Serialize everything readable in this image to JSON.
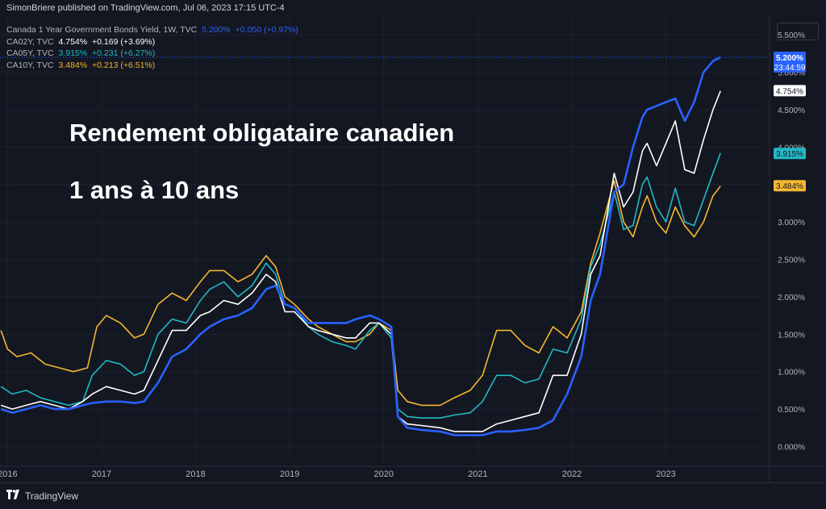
{
  "header": {
    "publisher_line": "SimonBriere published on TradingView.com, Jul 06, 2023 17:15 UTC-4"
  },
  "legend": {
    "main": {
      "name": "Canada 1 Year Government Bonds Yield, 1W, TVC",
      "value": "5.200%",
      "change": "+0.050 (+0.97%)",
      "color": "#2962ff"
    },
    "overlays": [
      {
        "symbol": "CA02Y, TVC",
        "value": "4.754%",
        "change": "+0.169 (+3.69%)",
        "color": "#ffffff"
      },
      {
        "symbol": "CA05Y, TVC",
        "value": "3.915%",
        "change": "+0.231 (+6.27%)",
        "color": "#22b8c4"
      },
      {
        "symbol": "CA10Y, TVC",
        "value": "3.484%",
        "change": "+0.213 (+6.51%)",
        "color": "#f5b731"
      }
    ]
  },
  "overlay_text": {
    "title": "Rendement obligataire canadien",
    "subtitle": "1 ans à 10 ans"
  },
  "footer": {
    "brand": "TradingView",
    "brand_icon": "tradingview-logo-icon"
  },
  "price_badges": [
    {
      "label": "5.200%",
      "sublabel": "23:44:59",
      "value": 5.2,
      "bg": "#2962ff",
      "fg": "#ffffff"
    },
    {
      "label": "4.754%",
      "value": 4.754,
      "bg": "#ffffff",
      "fg": "#131722"
    },
    {
      "label": "3.915%",
      "value": 3.915,
      "bg": "#22b8c4",
      "fg": "#131722"
    },
    {
      "label": "3.484%",
      "value": 3.484,
      "bg": "#f5b731",
      "fg": "#131722"
    }
  ],
  "chart_data": {
    "type": "line",
    "ylim": [
      -0.2,
      5.75
    ],
    "xlim": [
      2015.92,
      2024.05
    ],
    "y_ticks": [
      0,
      0.5,
      1,
      1.5,
      2,
      2.5,
      3,
      3.5,
      4,
      4.5,
      5,
      5.5
    ],
    "y_tick_labels": [
      "0.000%",
      "0.500%",
      "1.000%",
      "1.500%",
      "2.000%",
      "2.500%",
      "3.000%",
      "3.500%",
      "4.000%",
      "4.500%",
      "5.000%",
      "5.500%"
    ],
    "x_ticks": [
      2016,
      2017,
      2018,
      2019,
      2020,
      2021,
      2022,
      2023
    ],
    "x_tick_labels": [
      "2016",
      "2017",
      "2018",
      "2019",
      "2020",
      "2021",
      "2022",
      "2023"
    ],
    "grid": true,
    "series": [
      {
        "name": "CA10Y",
        "color": "#f5b731",
        "points": [
          [
            2015.93,
            1.55
          ],
          [
            2016.0,
            1.3
          ],
          [
            2016.1,
            1.2
          ],
          [
            2016.25,
            1.25
          ],
          [
            2016.4,
            1.1
          ],
          [
            2016.55,
            1.05
          ],
          [
            2016.7,
            1.0
          ],
          [
            2016.85,
            1.05
          ],
          [
            2016.95,
            1.6
          ],
          [
            2017.05,
            1.75
          ],
          [
            2017.2,
            1.65
          ],
          [
            2017.35,
            1.45
          ],
          [
            2017.45,
            1.5
          ],
          [
            2017.6,
            1.9
          ],
          [
            2017.75,
            2.05
          ],
          [
            2017.9,
            1.95
          ],
          [
            2018.05,
            2.2
          ],
          [
            2018.15,
            2.35
          ],
          [
            2018.3,
            2.35
          ],
          [
            2018.45,
            2.2
          ],
          [
            2018.6,
            2.3
          ],
          [
            2018.75,
            2.55
          ],
          [
            2018.85,
            2.4
          ],
          [
            2018.95,
            2.0
          ],
          [
            2019.05,
            1.9
          ],
          [
            2019.2,
            1.7
          ],
          [
            2019.3,
            1.6
          ],
          [
            2019.45,
            1.5
          ],
          [
            2019.6,
            1.4
          ],
          [
            2019.7,
            1.4
          ],
          [
            2019.85,
            1.5
          ],
          [
            2019.95,
            1.65
          ],
          [
            2020.08,
            1.55
          ],
          [
            2020.15,
            0.75
          ],
          [
            2020.25,
            0.6
          ],
          [
            2020.4,
            0.55
          ],
          [
            2020.6,
            0.55
          ],
          [
            2020.75,
            0.65
          ],
          [
            2020.92,
            0.75
          ],
          [
            2021.05,
            0.95
          ],
          [
            2021.2,
            1.55
          ],
          [
            2021.35,
            1.55
          ],
          [
            2021.5,
            1.35
          ],
          [
            2021.65,
            1.25
          ],
          [
            2021.8,
            1.6
          ],
          [
            2021.95,
            1.45
          ],
          [
            2022.1,
            1.8
          ],
          [
            2022.2,
            2.45
          ],
          [
            2022.3,
            2.85
          ],
          [
            2022.45,
            3.55
          ],
          [
            2022.55,
            3.0
          ],
          [
            2022.65,
            2.8
          ],
          [
            2022.75,
            3.2
          ],
          [
            2022.8,
            3.35
          ],
          [
            2022.9,
            3.0
          ],
          [
            2023.0,
            2.85
          ],
          [
            2023.1,
            3.2
          ],
          [
            2023.2,
            2.95
          ],
          [
            2023.3,
            2.8
          ],
          [
            2023.4,
            3.0
          ],
          [
            2023.5,
            3.35
          ],
          [
            2023.58,
            3.48
          ]
        ]
      },
      {
        "name": "CA05Y",
        "color": "#22b8c4",
        "points": [
          [
            2015.93,
            0.8
          ],
          [
            2016.05,
            0.7
          ],
          [
            2016.2,
            0.75
          ],
          [
            2016.35,
            0.65
          ],
          [
            2016.5,
            0.6
          ],
          [
            2016.65,
            0.55
          ],
          [
            2016.8,
            0.6
          ],
          [
            2016.9,
            0.95
          ],
          [
            2017.05,
            1.15
          ],
          [
            2017.2,
            1.1
          ],
          [
            2017.35,
            0.95
          ],
          [
            2017.45,
            1.0
          ],
          [
            2017.6,
            1.5
          ],
          [
            2017.75,
            1.7
          ],
          [
            2017.9,
            1.65
          ],
          [
            2018.05,
            1.95
          ],
          [
            2018.15,
            2.1
          ],
          [
            2018.3,
            2.2
          ],
          [
            2018.45,
            2.0
          ],
          [
            2018.6,
            2.15
          ],
          [
            2018.75,
            2.45
          ],
          [
            2018.85,
            2.3
          ],
          [
            2018.95,
            1.9
          ],
          [
            2019.05,
            1.85
          ],
          [
            2019.2,
            1.6
          ],
          [
            2019.3,
            1.5
          ],
          [
            2019.45,
            1.4
          ],
          [
            2019.6,
            1.35
          ],
          [
            2019.7,
            1.3
          ],
          [
            2019.85,
            1.55
          ],
          [
            2019.95,
            1.65
          ],
          [
            2020.08,
            1.45
          ],
          [
            2020.15,
            0.5
          ],
          [
            2020.25,
            0.4
          ],
          [
            2020.4,
            0.38
          ],
          [
            2020.6,
            0.38
          ],
          [
            2020.75,
            0.42
          ],
          [
            2020.92,
            0.45
          ],
          [
            2021.05,
            0.6
          ],
          [
            2021.2,
            0.95
          ],
          [
            2021.35,
            0.95
          ],
          [
            2021.5,
            0.85
          ],
          [
            2021.65,
            0.9
          ],
          [
            2021.8,
            1.3
          ],
          [
            2021.95,
            1.25
          ],
          [
            2022.1,
            1.7
          ],
          [
            2022.2,
            2.4
          ],
          [
            2022.3,
            2.7
          ],
          [
            2022.45,
            3.4
          ],
          [
            2022.55,
            2.9
          ],
          [
            2022.65,
            2.95
          ],
          [
            2022.75,
            3.5
          ],
          [
            2022.8,
            3.6
          ],
          [
            2022.9,
            3.2
          ],
          [
            2023.0,
            3.0
          ],
          [
            2023.1,
            3.45
          ],
          [
            2023.2,
            3.0
          ],
          [
            2023.3,
            2.95
          ],
          [
            2023.4,
            3.3
          ],
          [
            2023.5,
            3.65
          ],
          [
            2023.58,
            3.92
          ]
        ]
      },
      {
        "name": "CA02Y",
        "color": "#ffffff",
        "points": [
          [
            2015.93,
            0.55
          ],
          [
            2016.05,
            0.5
          ],
          [
            2016.2,
            0.55
          ],
          [
            2016.35,
            0.6
          ],
          [
            2016.5,
            0.55
          ],
          [
            2016.65,
            0.5
          ],
          [
            2016.8,
            0.6
          ],
          [
            2016.9,
            0.7
          ],
          [
            2017.05,
            0.8
          ],
          [
            2017.2,
            0.75
          ],
          [
            2017.35,
            0.7
          ],
          [
            2017.45,
            0.75
          ],
          [
            2017.6,
            1.15
          ],
          [
            2017.75,
            1.55
          ],
          [
            2017.9,
            1.55
          ],
          [
            2018.05,
            1.75
          ],
          [
            2018.15,
            1.8
          ],
          [
            2018.3,
            1.95
          ],
          [
            2018.45,
            1.9
          ],
          [
            2018.6,
            2.05
          ],
          [
            2018.75,
            2.3
          ],
          [
            2018.85,
            2.2
          ],
          [
            2018.95,
            1.8
          ],
          [
            2019.05,
            1.8
          ],
          [
            2019.2,
            1.6
          ],
          [
            2019.3,
            1.55
          ],
          [
            2019.45,
            1.5
          ],
          [
            2019.6,
            1.45
          ],
          [
            2019.7,
            1.45
          ],
          [
            2019.85,
            1.65
          ],
          [
            2019.95,
            1.65
          ],
          [
            2020.08,
            1.5
          ],
          [
            2020.15,
            0.4
          ],
          [
            2020.25,
            0.3
          ],
          [
            2020.4,
            0.28
          ],
          [
            2020.6,
            0.25
          ],
          [
            2020.75,
            0.2
          ],
          [
            2020.92,
            0.2
          ],
          [
            2021.05,
            0.2
          ],
          [
            2021.2,
            0.3
          ],
          [
            2021.35,
            0.35
          ],
          [
            2021.5,
            0.4
          ],
          [
            2021.65,
            0.45
          ],
          [
            2021.8,
            0.95
          ],
          [
            2021.95,
            0.95
          ],
          [
            2022.1,
            1.5
          ],
          [
            2022.2,
            2.3
          ],
          [
            2022.3,
            2.55
          ],
          [
            2022.45,
            3.65
          ],
          [
            2022.55,
            3.2
          ],
          [
            2022.65,
            3.4
          ],
          [
            2022.75,
            3.95
          ],
          [
            2022.8,
            4.05
          ],
          [
            2022.9,
            3.75
          ],
          [
            2023.0,
            4.05
          ],
          [
            2023.1,
            4.35
          ],
          [
            2023.2,
            3.7
          ],
          [
            2023.3,
            3.65
          ],
          [
            2023.4,
            4.1
          ],
          [
            2023.5,
            4.5
          ],
          [
            2023.58,
            4.75
          ]
        ]
      },
      {
        "name": "CA01Y",
        "color": "#2962ff",
        "points": [
          [
            2015.93,
            0.5
          ],
          [
            2016.05,
            0.45
          ],
          [
            2016.2,
            0.5
          ],
          [
            2016.35,
            0.55
          ],
          [
            2016.5,
            0.5
          ],
          [
            2016.65,
            0.5
          ],
          [
            2016.8,
            0.55
          ],
          [
            2016.9,
            0.58
          ],
          [
            2017.05,
            0.6
          ],
          [
            2017.2,
            0.6
          ],
          [
            2017.35,
            0.58
          ],
          [
            2017.45,
            0.6
          ],
          [
            2017.6,
            0.85
          ],
          [
            2017.75,
            1.2
          ],
          [
            2017.9,
            1.3
          ],
          [
            2018.05,
            1.5
          ],
          [
            2018.15,
            1.6
          ],
          [
            2018.3,
            1.7
          ],
          [
            2018.45,
            1.75
          ],
          [
            2018.6,
            1.85
          ],
          [
            2018.75,
            2.1
          ],
          [
            2018.85,
            2.15
          ],
          [
            2018.95,
            1.9
          ],
          [
            2019.05,
            1.85
          ],
          [
            2019.2,
            1.65
          ],
          [
            2019.3,
            1.65
          ],
          [
            2019.45,
            1.65
          ],
          [
            2019.6,
            1.65
          ],
          [
            2019.7,
            1.7
          ],
          [
            2019.85,
            1.75
          ],
          [
            2019.95,
            1.7
          ],
          [
            2020.08,
            1.6
          ],
          [
            2020.15,
            0.4
          ],
          [
            2020.25,
            0.25
          ],
          [
            2020.4,
            0.22
          ],
          [
            2020.6,
            0.2
          ],
          [
            2020.75,
            0.15
          ],
          [
            2020.92,
            0.15
          ],
          [
            2021.05,
            0.15
          ],
          [
            2021.2,
            0.2
          ],
          [
            2021.35,
            0.2
          ],
          [
            2021.5,
            0.22
          ],
          [
            2021.65,
            0.25
          ],
          [
            2021.8,
            0.35
          ],
          [
            2021.95,
            0.7
          ],
          [
            2022.1,
            1.2
          ],
          [
            2022.2,
            1.95
          ],
          [
            2022.3,
            2.3
          ],
          [
            2022.45,
            3.4
          ],
          [
            2022.55,
            3.5
          ],
          [
            2022.65,
            4.0
          ],
          [
            2022.75,
            4.4
          ],
          [
            2022.8,
            4.5
          ],
          [
            2022.9,
            4.55
          ],
          [
            2023.0,
            4.6
          ],
          [
            2023.1,
            4.65
          ],
          [
            2023.2,
            4.35
          ],
          [
            2023.3,
            4.6
          ],
          [
            2023.4,
            5.0
          ],
          [
            2023.5,
            5.15
          ],
          [
            2023.58,
            5.2
          ]
        ]
      }
    ]
  }
}
